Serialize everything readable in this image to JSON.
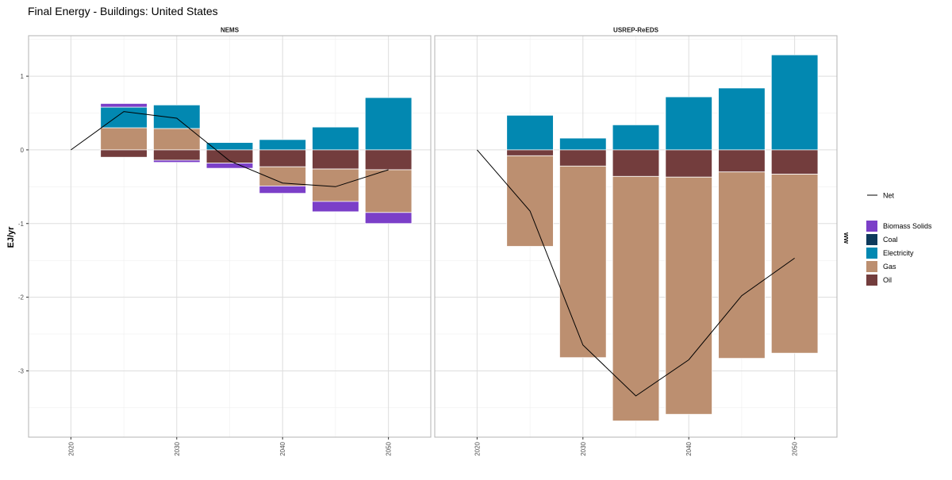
{
  "colors": {
    "Biomass Solids": "#7B3FC8",
    "Coal": "#0E3A5C",
    "Electricity": "#0288B1",
    "Gas": "#BC8F70",
    "Oil": "#733D3D",
    "Net": "#000000",
    "grid": "#DDDDDD",
    "panel_border": "#B3B3B3",
    "strip_bg": "#FFFFFF"
  },
  "chart_data": {
    "type": "bar",
    "title": "Final Energy - Buildings: United States",
    "ylabel": "EJ/yr",
    "xlabel": "",
    "right_axis_label": "ww",
    "x_ticks": [
      2020,
      2030,
      2040,
      2050
    ],
    "y_ticks": [
      -3,
      -2,
      -1,
      0,
      1
    ],
    "xlim": [
      2016,
      2054
    ],
    "ylim": [
      -3.9,
      1.55
    ],
    "grid": true,
    "legend": {
      "placement": "right",
      "line_entries": [
        "Net"
      ],
      "fill_entries": [
        "Biomass Solids",
        "Coal",
        "Electricity",
        "Gas",
        "Oil"
      ]
    },
    "panels": [
      {
        "name": "NEMS",
        "bars": [
          {
            "x": 2025,
            "segments": [
              {
                "var": "Gas",
                "value": 0.3
              },
              {
                "var": "Electricity",
                "value": 0.28
              },
              {
                "var": "Biomass Solids",
                "value": 0.05
              },
              {
                "var": "Oil",
                "value": -0.1
              }
            ]
          },
          {
            "x": 2030,
            "segments": [
              {
                "var": "Gas",
                "value": 0.29
              },
              {
                "var": "Electricity",
                "value": 0.32
              },
              {
                "var": "Oil",
                "value": -0.14
              },
              {
                "var": "Biomass Solids",
                "value": -0.03
              }
            ]
          },
          {
            "x": 2035,
            "segments": [
              {
                "var": "Electricity",
                "value": 0.1
              },
              {
                "var": "Oil",
                "value": -0.18
              },
              {
                "var": "Biomass Solids",
                "value": -0.07
              }
            ]
          },
          {
            "x": 2040,
            "segments": [
              {
                "var": "Electricity",
                "value": 0.14
              },
              {
                "var": "Oil",
                "value": -0.23
              },
              {
                "var": "Gas",
                "value": -0.26
              },
              {
                "var": "Biomass Solids",
                "value": -0.1
              }
            ]
          },
          {
            "x": 2045,
            "segments": [
              {
                "var": "Electricity",
                "value": 0.31
              },
              {
                "var": "Oil",
                "value": -0.26
              },
              {
                "var": "Gas",
                "value": -0.44
              },
              {
                "var": "Biomass Solids",
                "value": -0.14
              }
            ]
          },
          {
            "x": 2050,
            "segments": [
              {
                "var": "Electricity",
                "value": 0.71
              },
              {
                "var": "Oil",
                "value": -0.27
              },
              {
                "var": "Gas",
                "value": -0.58
              },
              {
                "var": "Biomass Solids",
                "value": -0.15
              }
            ]
          }
        ],
        "net": [
          {
            "x": 2020,
            "y": 0
          },
          {
            "x": 2025,
            "y": 0.52
          },
          {
            "x": 2030,
            "y": 0.43
          },
          {
            "x": 2035,
            "y": -0.15
          },
          {
            "x": 2040,
            "y": -0.45
          },
          {
            "x": 2045,
            "y": -0.5
          },
          {
            "x": 2050,
            "y": -0.27
          }
        ]
      },
      {
        "name": "USREP-ReEDS",
        "bars": [
          {
            "x": 2025,
            "segments": [
              {
                "var": "Electricity",
                "value": 0.47
              },
              {
                "var": "Oil",
                "value": -0.08
              },
              {
                "var": "Gas",
                "value": -1.23
              }
            ]
          },
          {
            "x": 2030,
            "segments": [
              {
                "var": "Electricity",
                "value": 0.16
              },
              {
                "var": "Oil",
                "value": -0.22
              },
              {
                "var": "Gas",
                "value": -2.6
              }
            ]
          },
          {
            "x": 2035,
            "segments": [
              {
                "var": "Electricity",
                "value": 0.34
              },
              {
                "var": "Oil",
                "value": -0.36
              },
              {
                "var": "Gas",
                "value": -3.32
              }
            ]
          },
          {
            "x": 2040,
            "segments": [
              {
                "var": "Electricity",
                "value": 0.72
              },
              {
                "var": "Oil",
                "value": -0.37
              },
              {
                "var": "Gas",
                "value": -3.22
              }
            ]
          },
          {
            "x": 2045,
            "segments": [
              {
                "var": "Electricity",
                "value": 0.84
              },
              {
                "var": "Oil",
                "value": -0.3
              },
              {
                "var": "Gas",
                "value": -2.53
              }
            ]
          },
          {
            "x": 2050,
            "segments": [
              {
                "var": "Electricity",
                "value": 1.29
              },
              {
                "var": "Oil",
                "value": -0.33
              },
              {
                "var": "Gas",
                "value": -2.43
              }
            ]
          }
        ],
        "net": [
          {
            "x": 2020,
            "y": 0
          },
          {
            "x": 2025,
            "y": -0.83
          },
          {
            "x": 2030,
            "y": -2.65
          },
          {
            "x": 2035,
            "y": -3.34
          },
          {
            "x": 2040,
            "y": -2.85
          },
          {
            "x": 2045,
            "y": -1.98
          },
          {
            "x": 2050,
            "y": -1.47
          }
        ]
      }
    ]
  }
}
